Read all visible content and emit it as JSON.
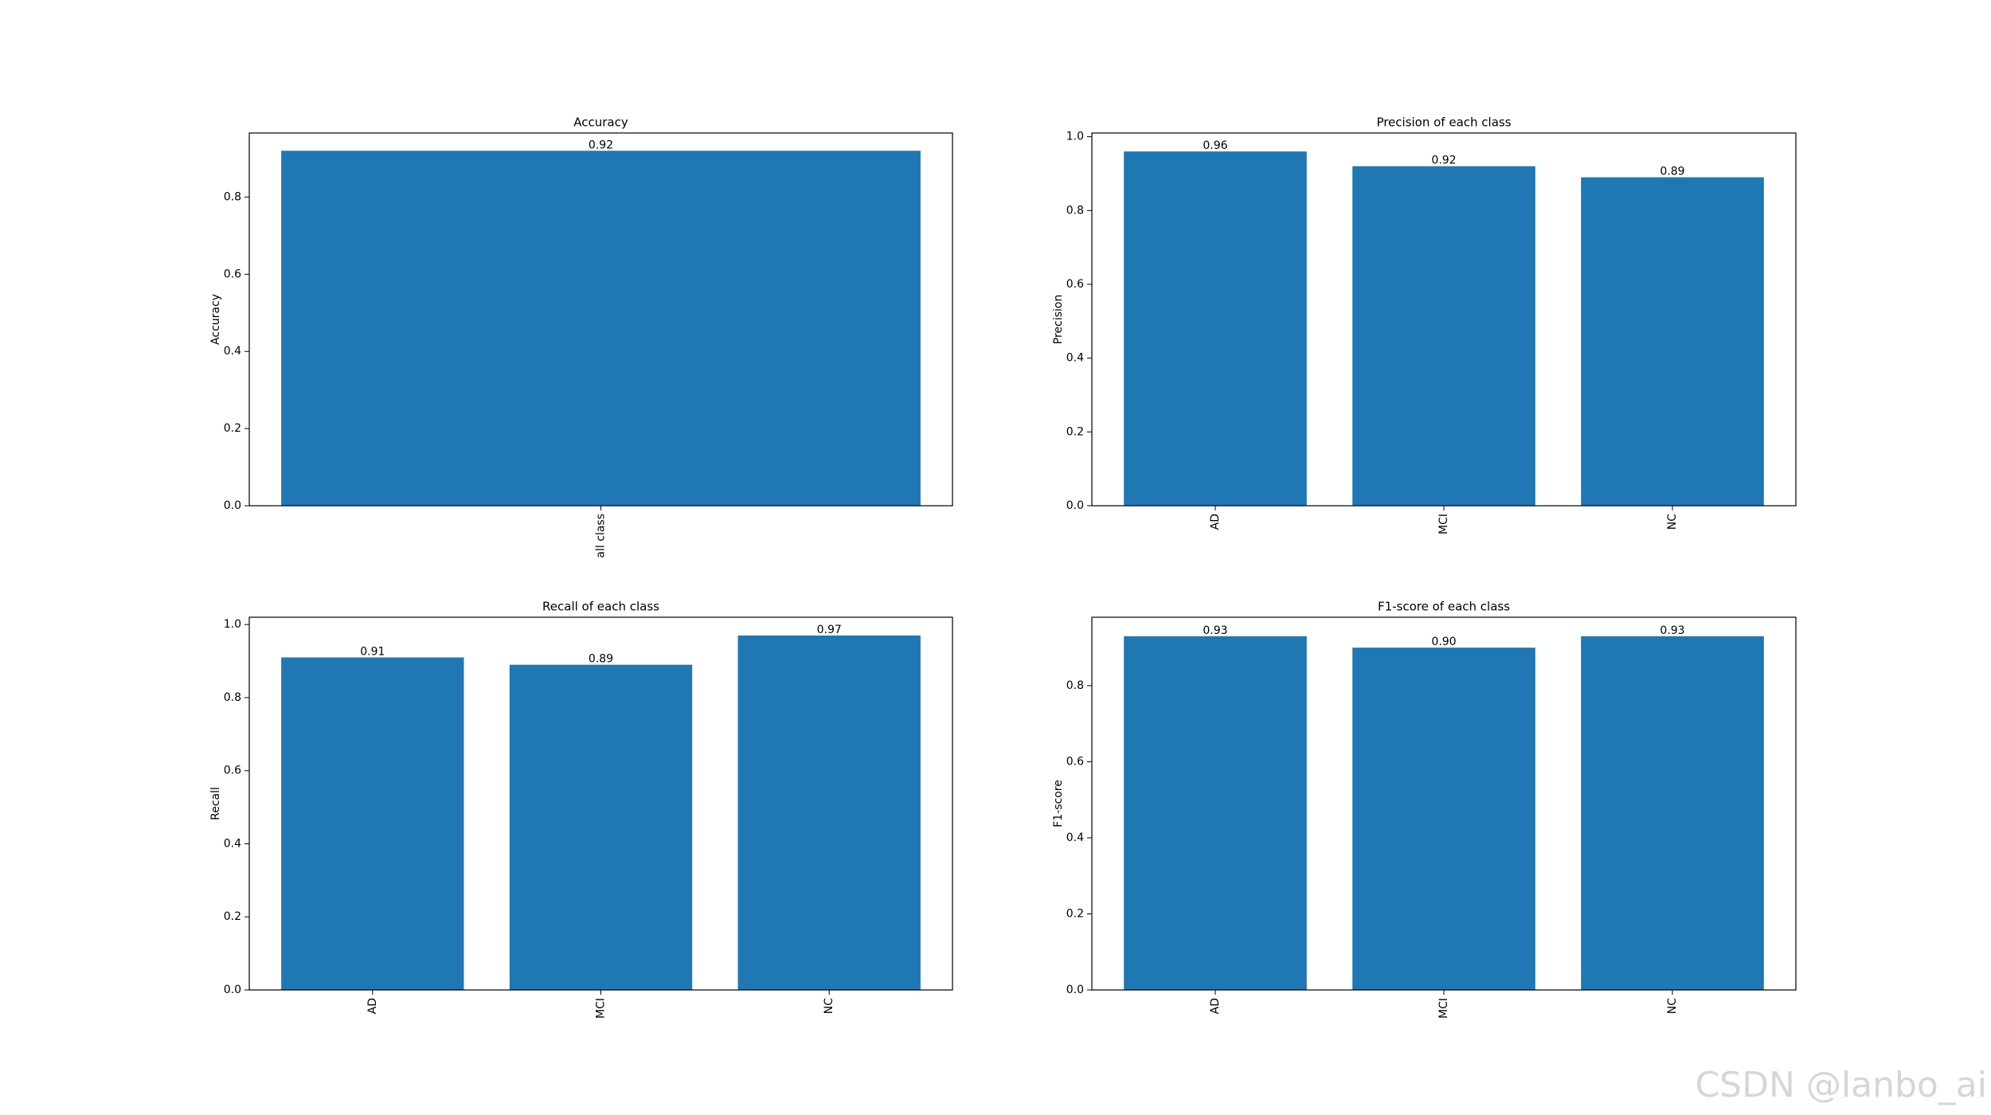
{
  "chart_data": [
    {
      "type": "bar",
      "title": "Accuracy",
      "ylabel": "Accuracy",
      "categories": [
        "all class"
      ],
      "values": [
        0.92
      ],
      "value_labels": [
        "0.92"
      ],
      "color": "#1f77b4",
      "ylim": [
        0,
        0.966
      ],
      "yticks": [
        {
          "value": 0,
          "label": "0.0"
        },
        0.2,
        0.4,
        0.6,
        0.8
      ]
    },
    {
      "type": "bar",
      "title": "Precision of each class",
      "ylabel": "Precision",
      "categories": [
        "AD",
        "MCI",
        "NC"
      ],
      "values": [
        0.96,
        0.92,
        0.89
      ],
      "value_labels": [
        "0.96",
        "0.92",
        "0.89"
      ],
      "color": "#1f77b4",
      "ylim": [
        0,
        1.01
      ],
      "yticks": [
        {
          "value": 0,
          "label": "0.0"
        },
        0.2,
        0.4,
        0.6,
        0.8,
        {
          "value": 1,
          "label": "1.0"
        }
      ]
    },
    {
      "type": "bar",
      "title": "Recall of each class",
      "ylabel": "Recall",
      "categories": [
        "AD",
        "MCI",
        "NC"
      ],
      "values": [
        0.91,
        0.89,
        0.97
      ],
      "value_labels": [
        "0.91",
        "0.89",
        "0.97"
      ],
      "color": "#1f77b4",
      "ylim": [
        0,
        1.02
      ],
      "yticks": [
        {
          "value": 0,
          "label": "0.0"
        },
        0.2,
        0.4,
        0.6,
        0.8,
        {
          "value": 1,
          "label": "1.0"
        }
      ]
    },
    {
      "type": "bar",
      "title": "F1-score of each class",
      "ylabel": "F1-score",
      "categories": [
        "AD",
        "MCI",
        "NC"
      ],
      "values": [
        0.93,
        0.9,
        0.93
      ],
      "value_labels": [
        "0.93",
        "0.90",
        "0.93"
      ],
      "color": "#1f77b4",
      "ylim": [
        0,
        0.98
      ],
      "yticks": [
        {
          "value": 0,
          "label": "0.0"
        },
        0.2,
        0.4,
        0.6,
        0.8
      ]
    }
  ],
  "watermark": "CSDN @lanbo_ai"
}
